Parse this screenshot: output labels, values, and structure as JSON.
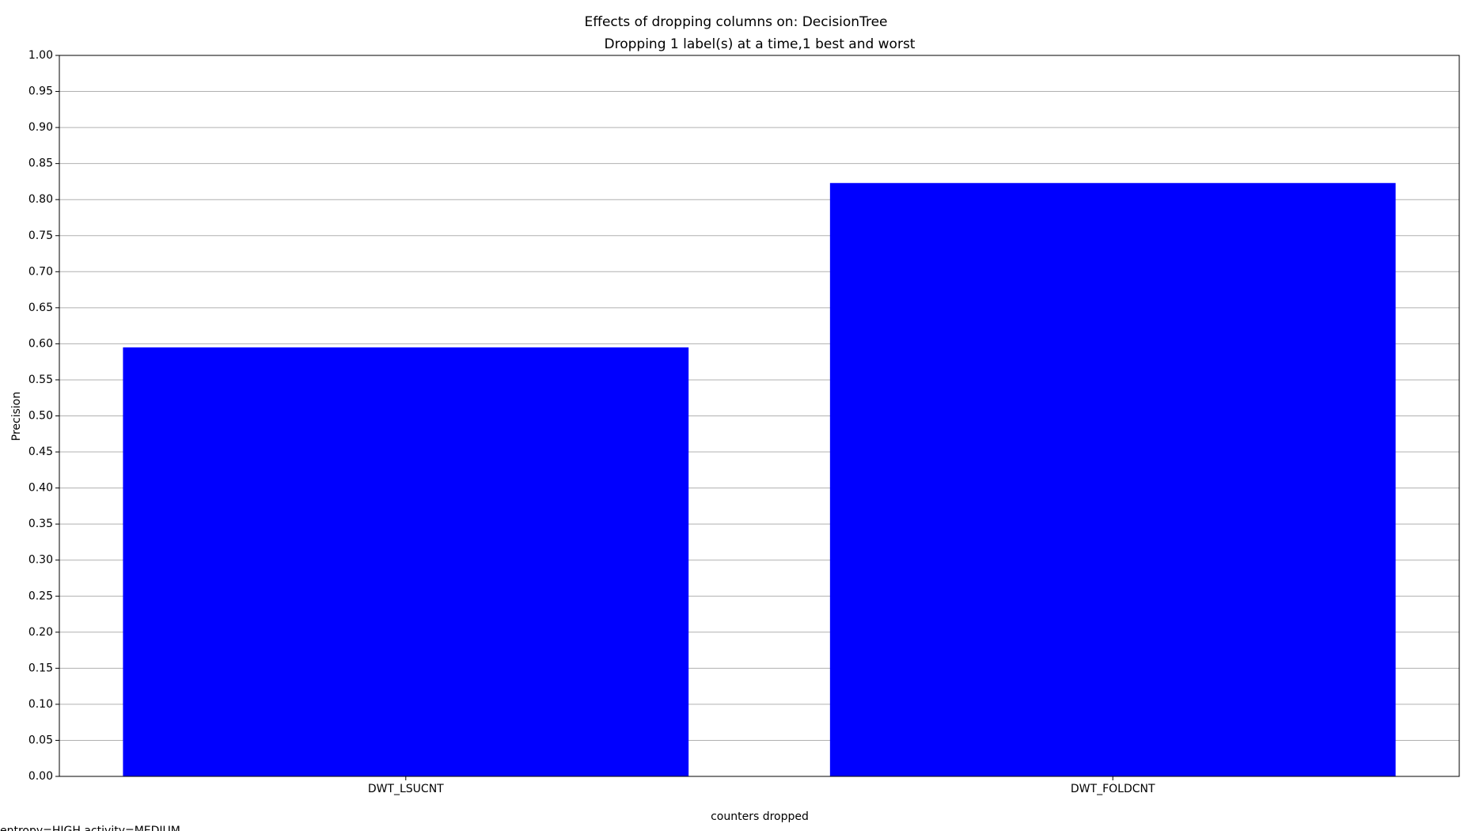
{
  "chart_data": {
    "type": "bar",
    "title": "Effects of dropping columns on: DecisionTree",
    "subtitle": "Dropping 1 label(s) at a time,1 best and worst",
    "x_label": "counters dropped",
    "y_label": "Precision",
    "annotation": "entropy=HIGH,activity=MEDIUM,",
    "categories": [
      "DWT_LSUCNT",
      "DWT_FOLDCNT"
    ],
    "values": [
      0.595,
      0.823
    ],
    "color": "#0000ff",
    "ylim": [
      0,
      1
    ],
    "yticks": [
      {
        "value": 0,
        "label": "0.00"
      },
      {
        "value": 0.05,
        "label": "0.05"
      },
      {
        "value": 0.1,
        "label": "0.10"
      },
      {
        "value": 0.15,
        "label": "0.15"
      },
      {
        "value": 0.2,
        "label": "0.20"
      },
      {
        "value": 0.25,
        "label": "0.25"
      },
      {
        "value": 0.3,
        "label": "0.30"
      },
      {
        "value": 0.35,
        "label": "0.35"
      },
      {
        "value": 0.4,
        "label": "0.40"
      },
      {
        "value": 0.45,
        "label": "0.45"
      },
      {
        "value": 0.5,
        "label": "0.50"
      },
      {
        "value": 0.55,
        "label": "0.55"
      },
      {
        "value": 0.6,
        "label": "0.60"
      },
      {
        "value": 0.65,
        "label": "0.65"
      },
      {
        "value": 0.7,
        "label": "0.70"
      },
      {
        "value": 0.75,
        "label": "0.75"
      },
      {
        "value": 0.8,
        "label": "0.80"
      },
      {
        "value": 0.85,
        "label": "0.85"
      },
      {
        "value": 0.9,
        "label": "0.90"
      },
      {
        "value": 0.95,
        "label": "0.95"
      },
      {
        "value": 1,
        "label": "1.00"
      }
    ],
    "grid": true
  }
}
